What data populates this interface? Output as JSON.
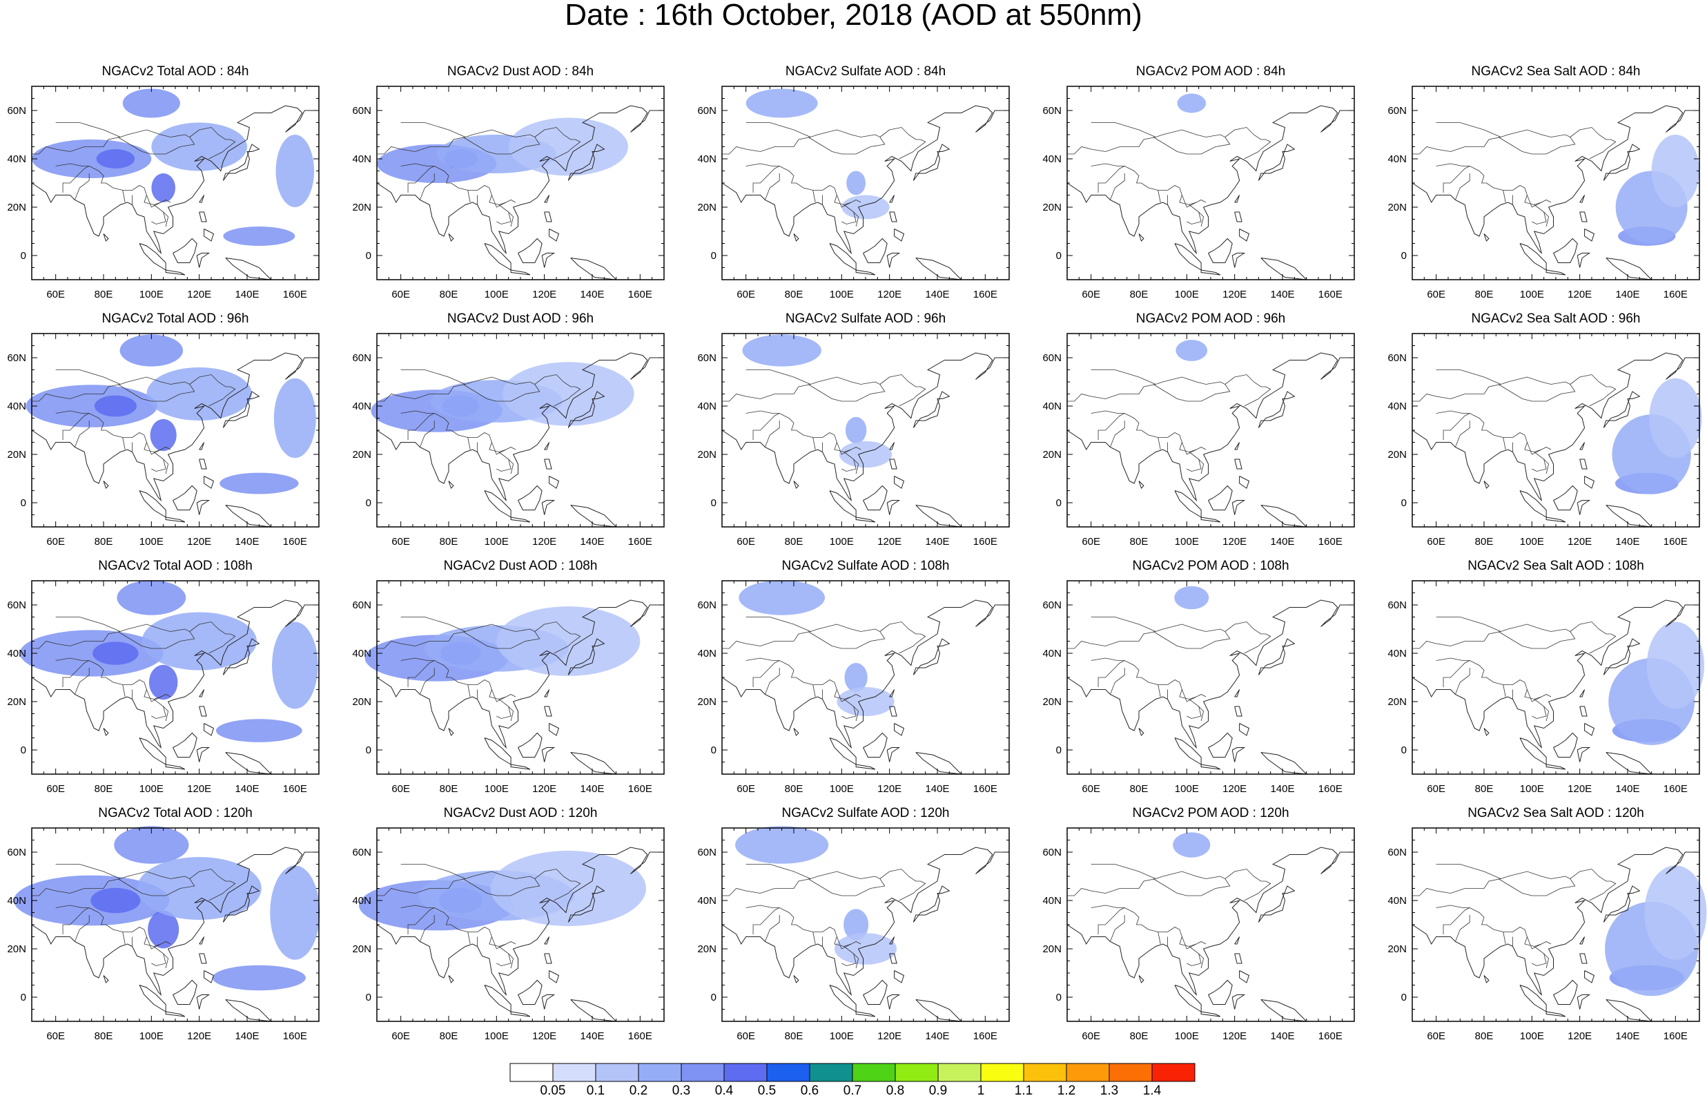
{
  "title": "Date : 16th October, 2018 (AOD at 550nm)",
  "chart_data": {
    "type": "heatmap",
    "map_region": "Asia-Pacific, 50E–170E, 10S–70N",
    "x_tick_labels": [
      "60E",
      "80E",
      "100E",
      "120E",
      "140E",
      "160E"
    ],
    "x_ticks": [
      60,
      80,
      100,
      120,
      140,
      160
    ],
    "y_tick_labels": [
      "60N",
      "40N",
      "20N",
      "0"
    ],
    "y_ticks": [
      60,
      40,
      20,
      0
    ],
    "xlim": [
      50,
      170
    ],
    "ylim": [
      -10,
      70
    ],
    "colorbar": {
      "labels": [
        "0.05",
        "0.1",
        "0.2",
        "0.3",
        "0.4",
        "0.5",
        "0.6",
        "0.7",
        "0.8",
        "0.9",
        "1",
        "1.1",
        "1.2",
        "1.3",
        "1.4"
      ],
      "colors": [
        "#ffffff",
        "#d4ddfb",
        "#b4c4f9",
        "#95adf7",
        "#7e93f3",
        "#5d6cf0",
        "#1c60f0",
        "#119090",
        "#4ed316",
        "#90ec12",
        "#c8f25c",
        "#f9fd0f",
        "#fcc10b",
        "#fc9a09",
        "#fb6f05",
        "#fa2204"
      ]
    },
    "panels": [
      [
        {
          "title": "NGACv2 Total AOD : 84h",
          "species": "total",
          "hour": 84
        },
        {
          "title": "NGACv2 Dust AOD : 84h",
          "species": "dust",
          "hour": 84
        },
        {
          "title": "NGACv2 Sulfate AOD : 84h",
          "species": "sulfate",
          "hour": 84
        },
        {
          "title": "NGACv2 POM AOD : 84h",
          "species": "pom",
          "hour": 84
        },
        {
          "title": "NGACv2 Sea Salt AOD : 84h",
          "species": "seasalt",
          "hour": 84
        }
      ],
      [
        {
          "title": "NGACv2 Total AOD : 96h",
          "species": "total",
          "hour": 96
        },
        {
          "title": "NGACv2 Dust AOD : 96h",
          "species": "dust",
          "hour": 96
        },
        {
          "title": "NGACv2 Sulfate AOD : 96h",
          "species": "sulfate",
          "hour": 96
        },
        {
          "title": "NGACv2 POM AOD : 96h",
          "species": "pom",
          "hour": 96
        },
        {
          "title": "NGACv2 Sea Salt AOD : 96h",
          "species": "seasalt",
          "hour": 96
        }
      ],
      [
        {
          "title": "NGACv2 Total AOD : 108h",
          "species": "total",
          "hour": 108
        },
        {
          "title": "NGACv2 Dust AOD : 108h",
          "species": "dust",
          "hour": 108
        },
        {
          "title": "NGACv2 Sulfate AOD : 108h",
          "species": "sulfate",
          "hour": 108
        },
        {
          "title": "NGACv2 POM AOD : 108h",
          "species": "pom",
          "hour": 108
        },
        {
          "title": "NGACv2 Sea Salt AOD : 108h",
          "species": "seasalt",
          "hour": 108
        }
      ],
      [
        {
          "title": "NGACv2 Total AOD : 120h",
          "species": "total",
          "hour": 120
        },
        {
          "title": "NGACv2 Dust AOD : 120h",
          "species": "dust",
          "hour": 120
        },
        {
          "title": "NGACv2 Sulfate AOD : 120h",
          "species": "sulfate",
          "hour": 120
        },
        {
          "title": "NGACv2 POM AOD : 120h",
          "species": "pom",
          "hour": 120
        },
        {
          "title": "NGACv2 Sea Salt  AOD : 120h",
          "species": "seasalt",
          "hour": 120
        }
      ]
    ],
    "features": {
      "total": [
        {
          "lon": 75,
          "lat": 40,
          "value": 0.3,
          "rlon": 25,
          "rlat": 8
        },
        {
          "lon": 85,
          "lat": 40,
          "value": 0.4,
          "rlon": 8,
          "rlat": 4
        },
        {
          "lon": 105,
          "lat": 28,
          "value": 0.4,
          "rlon": 5,
          "rlat": 6
        },
        {
          "lon": 100,
          "lat": 63,
          "value": 0.3,
          "rlon": 12,
          "rlat": 6
        },
        {
          "lon": 145,
          "lat": 8,
          "value": 0.3,
          "rlon": 15,
          "rlat": 4
        },
        {
          "lon": 120,
          "lat": 45,
          "value": 0.2,
          "rlon": 20,
          "rlat": 10
        },
        {
          "lon": 160,
          "lat": 35,
          "value": 0.2,
          "rlon": 8,
          "rlat": 15
        }
      ],
      "dust": [
        {
          "lon": 75,
          "lat": 38,
          "value": 0.3,
          "rlon": 25,
          "rlat": 8
        },
        {
          "lon": 85,
          "lat": 40,
          "value": 0.4,
          "rlon": 7,
          "rlat": 4
        },
        {
          "lon": 100,
          "lat": 42,
          "value": 0.2,
          "rlon": 25,
          "rlat": 8
        },
        {
          "lon": 130,
          "lat": 45,
          "value": 0.1,
          "rlon": 25,
          "rlat": 12
        }
      ],
      "sulfate": [
        {
          "lon": 75,
          "lat": 63,
          "value": 0.2,
          "rlon": 15,
          "rlat": 6
        },
        {
          "lon": 106,
          "lat": 30,
          "value": 0.2,
          "rlon": 4,
          "rlat": 5
        },
        {
          "lon": 110,
          "lat": 20,
          "value": 0.1,
          "rlon": 10,
          "rlat": 5
        }
      ],
      "pom": [
        {
          "lon": 102,
          "lat": 63,
          "value": 0.2,
          "rlon": 6,
          "rlat": 4
        }
      ],
      "seasalt": [
        {
          "lon": 148,
          "lat": 8,
          "value": 0.3,
          "rlon": 12,
          "rlat": 4
        },
        {
          "lon": 150,
          "lat": 20,
          "value": 0.2,
          "rlon": 15,
          "rlat": 15
        },
        {
          "lon": 160,
          "lat": 35,
          "value": 0.1,
          "rlon": 10,
          "rlat": 15
        }
      ]
    }
  }
}
